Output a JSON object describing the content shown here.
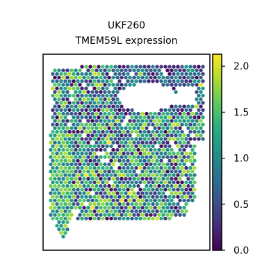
{
  "chart_data": {
    "type": "scatter",
    "subtype": "spatial-transcriptomics-hex-spots",
    "title_lines": [
      "UKF260",
      "TMEM59L expression"
    ],
    "colormap": "viridis",
    "colorbar": {
      "vmin": 0.0,
      "vmax": 2.13,
      "ticks": [
        0.0,
        0.5,
        1.0,
        1.5,
        2.0
      ],
      "tick_labels": [
        "0.0",
        "0.5",
        "1.0",
        "1.5",
        "2.0"
      ]
    },
    "axes_visible": false,
    "background": "#ffffff"
  }
}
